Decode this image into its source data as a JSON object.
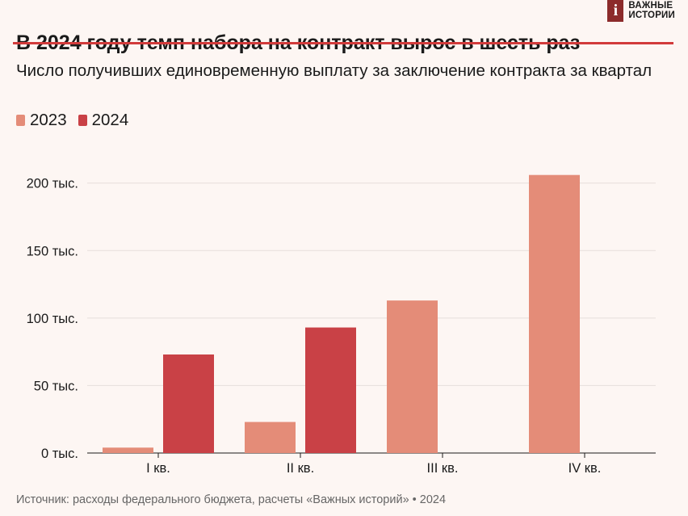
{
  "logo": {
    "mark": "i",
    "line1": "ВАЖНЫЕ",
    "line2": "ИСТОРИИ"
  },
  "title": "В 2024 году темп набора на контракт вырос в шесть раз",
  "source": "Источник: расходы федерального бюджета, расчеты «Важных историй» • 2024",
  "colors": {
    "s2023": "#e48c78",
    "s2024": "#c94146",
    "strike": "#d23b3b"
  },
  "chart_data": {
    "type": "bar",
    "title": "Число получивших единовременную выплату за заключение контракта за квартал",
    "categories": [
      "I кв.",
      "II кв.",
      "III кв.",
      "IV кв."
    ],
    "series": [
      {
        "name": "2023",
        "values": [
          4000,
          23000,
          113000,
          206000
        ]
      },
      {
        "name": "2024",
        "values": [
          73000,
          93000,
          null,
          null
        ]
      }
    ],
    "yticks": [
      0,
      50000,
      100000,
      150000,
      200000
    ],
    "ytick_labels": [
      "0 тыс.",
      "50 тыс.",
      "100 тыс.",
      "150 тыс.",
      "200 тыс."
    ],
    "ylim": [
      0,
      210000
    ],
    "grid": true,
    "legend": "top-left"
  }
}
